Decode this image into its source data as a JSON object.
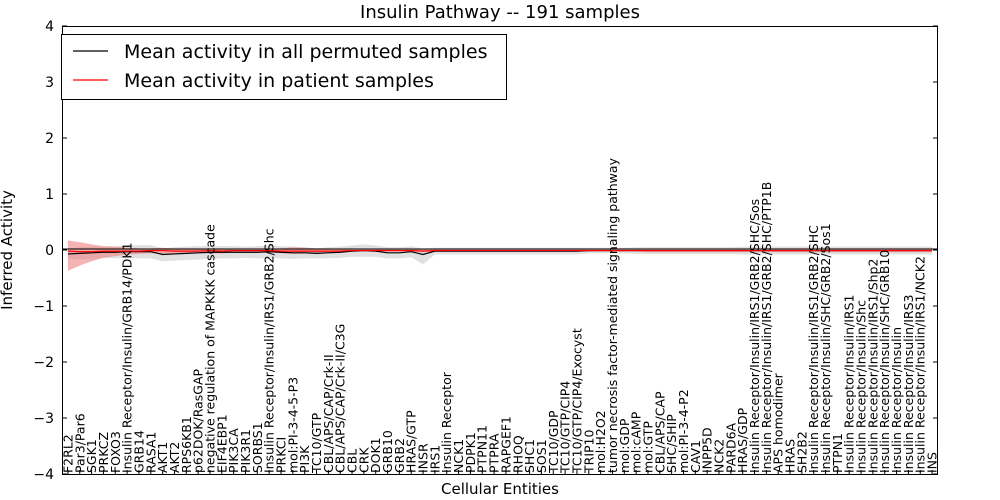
{
  "chart_data": {
    "type": "line",
    "title": "Insulin Pathway -- 191 samples",
    "xlabel": "Cellular Entities",
    "ylabel": "Inferred Activity",
    "ylim": [
      -4,
      4
    ],
    "yticks": [
      -4,
      -3,
      -2,
      -1,
      0,
      1,
      2,
      3,
      4
    ],
    "ytick_labels": [
      "−4",
      "−3",
      "−2",
      "−1",
      "0",
      "1",
      "2",
      "3",
      "4"
    ],
    "legend_position": "top-left",
    "categories": [
      "F2RL2",
      "Par3/Par6",
      "SGK1",
      "PRKCZ",
      "FOXO3",
      "Insulin Receptor/Insulin/GRB14/PDK1",
      "GRB14",
      "RASA1",
      "AKT1",
      "AKT2",
      "RPS6KB1",
      "p62DOK/RasGAP",
      "negative regulation of MAPKKK cascade",
      "EIF4EBP1",
      "PIK3CA",
      "PIK3R1",
      "SORBS1",
      "Insulin Receptor/Insulin/IRS1/GRB2/Shc",
      "PRKCI",
      "mol:PI-3-4-5-P3",
      "PI3K",
      "TC10/GTP",
      "CBL/APS/CAP/Crk-II",
      "CBL/APS/CAP/Crk-II/C3G",
      "CBL",
      "CRK",
      "DOK1",
      "GRB10",
      "GRB2",
      "HRAS/GTP",
      "INSR",
      "IRS1",
      "Insulin Receptor",
      "NCK1",
      "PDPK1",
      "PTPN11",
      "PTPRA",
      "RAPGEF1",
      "RHOQ",
      "SHC1",
      "SOS1",
      "TC10/GDP",
      "TC10/GTP/CIP4",
      "TC10/GTP/CIP4/Exocyst",
      "TRIP10",
      "mol:H2O2",
      "tumor necrosis factor-mediated signaling pathway",
      "mol:GDP",
      "mol:cAMP",
      "mol:GTP",
      "CBL/APS/CAP",
      "SHC/SHIP",
      "mol:PI-3-4-P2",
      "CAV1",
      "INPP5D",
      "NCK2",
      "PARD6A",
      "HRAS/GDP",
      "Insulin Receptor/Insulin/IRS1/GRB2/SHC/Sos",
      "Insulin Receptor/Insulin/IRS1/GRB2/SHC/PTP1B",
      "APS homodimer",
      "HRAS",
      "SH2B2",
      "Insulin Receptor/Insulin/IRS1/GRB2/SHC",
      "Insulin Receptor/Insulin/SHC/GRB2/Sos1",
      "PTPN1",
      "Insulin Receptor/Insulin/IRS1",
      "Insulin Receptor/Insulin/Shc",
      "Insulin Receptor/Insulin/IRS1/Shp2",
      "Insulin Receptor/Insulin/SHC/GRB10",
      "Insulin Receptor/Insulin",
      "Insulin Receptor/Insulin/IRS3",
      "Insulin Receptor/Insulin/IRS1/NCK2",
      "INS"
    ],
    "series": [
      {
        "name": "Mean activity in all permuted samples",
        "color": "#000000",
        "band_color": "#c8c8c8",
        "values": [
          -0.07,
          -0.06,
          -0.05,
          -0.04,
          -0.04,
          -0.03,
          -0.03,
          -0.03,
          -0.08,
          -0.07,
          -0.06,
          -0.05,
          -0.04,
          -0.04,
          -0.04,
          -0.04,
          -0.04,
          -0.03,
          -0.04,
          -0.05,
          -0.05,
          -0.06,
          -0.05,
          -0.04,
          -0.02,
          -0.01,
          -0.02,
          -0.05,
          -0.05,
          -0.03,
          -0.08,
          -0.02,
          -0.02,
          -0.02,
          -0.02,
          -0.02,
          -0.02,
          -0.02,
          -0.02,
          -0.02,
          -0.02,
          -0.02,
          -0.02,
          -0.02,
          -0.01,
          -0.01,
          -0.01,
          -0.01,
          -0.01,
          -0.01,
          -0.01,
          -0.01,
          -0.01,
          -0.01,
          -0.01,
          -0.01,
          -0.01,
          -0.01,
          -0.01,
          -0.01,
          -0.01,
          -0.01,
          -0.01,
          -0.01,
          -0.01,
          -0.01,
          -0.01,
          -0.01,
          -0.01,
          -0.01,
          -0.01,
          -0.01,
          -0.01,
          -0.01
        ],
        "upper": [
          0.02,
          0.05,
          0.06,
          0.06,
          0.07,
          0.08,
          0.09,
          0.09,
          0.03,
          0.05,
          0.06,
          0.07,
          0.08,
          0.07,
          0.07,
          0.06,
          0.07,
          0.08,
          0.07,
          0.06,
          0.05,
          0.03,
          0.05,
          0.06,
          0.08,
          0.1,
          0.08,
          0.05,
          0.05,
          0.07,
          0.02,
          0.04,
          0.04,
          0.04,
          0.04,
          0.04,
          0.04,
          0.04,
          0.04,
          0.04,
          0.04,
          0.04,
          0.04,
          0.04,
          0.04,
          0.04,
          0.04,
          0.04,
          0.05,
          0.05,
          0.05,
          0.05,
          0.05,
          0.05,
          0.05,
          0.05,
          0.05,
          0.06,
          0.06,
          0.06,
          0.06,
          0.06,
          0.06,
          0.06,
          0.06,
          0.06,
          0.06,
          0.06,
          0.06,
          0.06,
          0.06,
          0.06,
          0.06,
          0.06
        ],
        "lower": [
          -0.16,
          -0.17,
          -0.16,
          -0.14,
          -0.15,
          -0.14,
          -0.15,
          -0.15,
          -0.2,
          -0.19,
          -0.18,
          -0.17,
          -0.16,
          -0.15,
          -0.15,
          -0.14,
          -0.15,
          -0.14,
          -0.15,
          -0.16,
          -0.15,
          -0.15,
          -0.15,
          -0.14,
          -0.12,
          -0.12,
          -0.12,
          -0.15,
          -0.15,
          -0.13,
          -0.26,
          -0.08,
          -0.08,
          -0.08,
          -0.08,
          -0.08,
          -0.08,
          -0.08,
          -0.08,
          -0.08,
          -0.08,
          -0.08,
          -0.08,
          -0.08,
          -0.06,
          -0.06,
          -0.06,
          -0.06,
          -0.07,
          -0.07,
          -0.07,
          -0.07,
          -0.07,
          -0.07,
          -0.07,
          -0.07,
          -0.07,
          -0.08,
          -0.08,
          -0.08,
          -0.08,
          -0.08,
          -0.08,
          -0.08,
          -0.08,
          -0.08,
          -0.08,
          -0.08,
          -0.08,
          -0.08,
          -0.08,
          -0.08,
          -0.08,
          -0.08
        ]
      },
      {
        "name": "Mean activity in patient samples",
        "color": "#ff0000",
        "band_color": "#f08080",
        "values": [
          -0.02,
          -0.03,
          -0.03,
          -0.02,
          -0.02,
          -0.02,
          -0.02,
          -0.01,
          -0.01,
          -0.02,
          -0.02,
          -0.02,
          -0.01,
          -0.02,
          -0.01,
          -0.01,
          -0.01,
          -0.01,
          -0.02,
          -0.02,
          -0.02,
          -0.02,
          -0.02,
          -0.02,
          -0.01,
          -0.01,
          -0.01,
          -0.01,
          -0.01,
          -0.01,
          -0.02,
          -0.01,
          -0.01,
          -0.01,
          -0.01,
          -0.01,
          -0.01,
          -0.01,
          -0.01,
          -0.01,
          -0.01,
          -0.01,
          -0.01,
          -0.01,
          -0.01,
          -0.01,
          -0.01,
          -0.01,
          -0.01,
          -0.01,
          -0.01,
          -0.01,
          -0.01,
          -0.01,
          -0.01,
          -0.01,
          -0.01,
          -0.01,
          -0.01,
          -0.01,
          -0.01,
          -0.01,
          -0.01,
          -0.01,
          -0.01,
          -0.01,
          -0.01,
          -0.01,
          -0.01,
          -0.01,
          -0.01,
          -0.01,
          -0.01,
          -0.01
        ],
        "upper": [
          0.17,
          0.14,
          0.1,
          0.07,
          0.06,
          0.04,
          0.03,
          0.03,
          0.04,
          0.03,
          0.03,
          0.03,
          0.03,
          0.03,
          0.02,
          0.02,
          0.02,
          0.02,
          0.03,
          0.05,
          0.04,
          0.03,
          0.03,
          0.02,
          0.01,
          0.01,
          0.01,
          0.01,
          0.01,
          0.01,
          0.01,
          0.01,
          0.01,
          0.01,
          0.01,
          0.01,
          0.01,
          0.01,
          0.01,
          0.01,
          0.01,
          0.01,
          0.01,
          0.01,
          0.01,
          0.01,
          0.01,
          0.01,
          0.01,
          0.02,
          0.02,
          0.02,
          0.02,
          0.02,
          0.02,
          0.02,
          0.02,
          0.02,
          0.03,
          0.03,
          0.03,
          0.03,
          0.03,
          0.03,
          0.03,
          0.03,
          0.03,
          0.03,
          0.03,
          0.03,
          0.03,
          0.03,
          0.03,
          0.03
        ],
        "lower": [
          -0.37,
          -0.28,
          -0.2,
          -0.14,
          -0.11,
          -0.08,
          -0.07,
          -0.06,
          -0.06,
          -0.07,
          -0.07,
          -0.06,
          -0.06,
          -0.06,
          -0.05,
          -0.05,
          -0.05,
          -0.05,
          -0.06,
          -0.07,
          -0.06,
          -0.05,
          -0.05,
          -0.04,
          -0.03,
          -0.03,
          -0.03,
          -0.03,
          -0.03,
          -0.03,
          -0.04,
          -0.03,
          -0.03,
          -0.03,
          -0.03,
          -0.03,
          -0.03,
          -0.03,
          -0.03,
          -0.03,
          -0.03,
          -0.03,
          -0.03,
          -0.03,
          -0.03,
          -0.03,
          -0.03,
          -0.03,
          -0.03,
          -0.04,
          -0.04,
          -0.04,
          -0.04,
          -0.04,
          -0.04,
          -0.04,
          -0.04,
          -0.04,
          -0.04,
          -0.04,
          -0.04,
          -0.04,
          -0.04,
          -0.04,
          -0.04,
          -0.04,
          -0.04,
          -0.04,
          -0.04,
          -0.04,
          -0.04,
          -0.04,
          -0.04,
          -0.04
        ]
      }
    ]
  }
}
